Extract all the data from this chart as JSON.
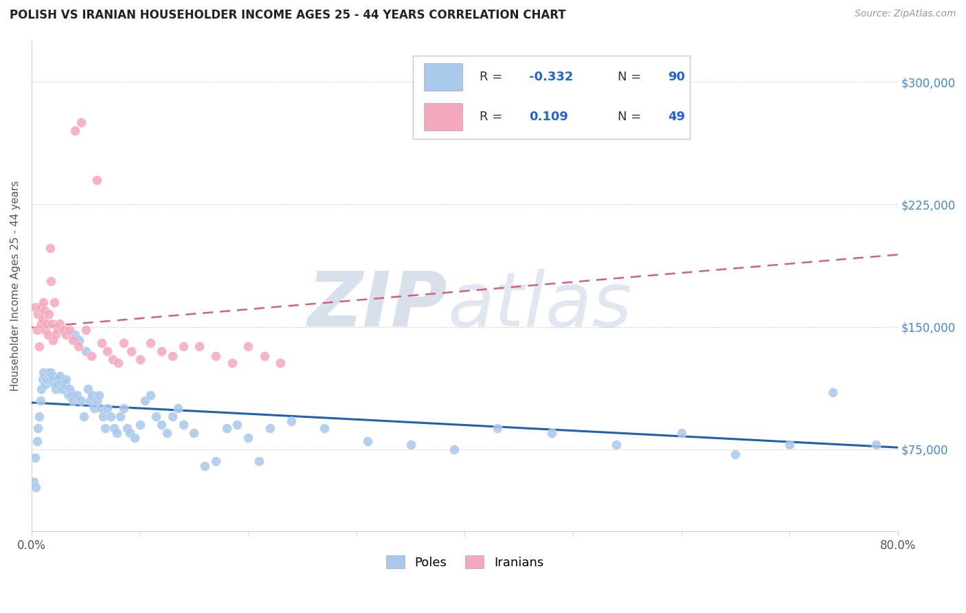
{
  "title": "POLISH VS IRANIAN HOUSEHOLDER INCOME AGES 25 - 44 YEARS CORRELATION CHART",
  "source": "Source: ZipAtlas.com",
  "ylabel": "Householder Income Ages 25 - 44 years",
  "ytick_labels": [
    "$75,000",
    "$150,000",
    "$225,000",
    "$300,000"
  ],
  "ytick_values": [
    75000,
    150000,
    225000,
    300000
  ],
  "xmin": 0.0,
  "xmax": 0.8,
  "ymin": 25000,
  "ymax": 325000,
  "poles_R": -0.332,
  "poles_N": 90,
  "iranians_R": 0.109,
  "iranians_N": 49,
  "poles_color": "#A8C8EC",
  "iranians_color": "#F4A8BC",
  "poles_line_color": "#2060B0",
  "iranians_line_color": "#D06080",
  "poles_x": [
    0.002,
    0.003,
    0.004,
    0.005,
    0.006,
    0.007,
    0.008,
    0.009,
    0.01,
    0.011,
    0.012,
    0.013,
    0.014,
    0.015,
    0.016,
    0.017,
    0.018,
    0.019,
    0.02,
    0.021,
    0.022,
    0.023,
    0.024,
    0.025,
    0.026,
    0.027,
    0.028,
    0.03,
    0.031,
    0.032,
    0.033,
    0.034,
    0.035,
    0.036,
    0.037,
    0.038,
    0.04,
    0.042,
    0.044,
    0.046,
    0.048,
    0.05,
    0.052,
    0.054,
    0.056,
    0.058,
    0.06,
    0.062,
    0.064,
    0.066,
    0.068,
    0.07,
    0.073,
    0.076,
    0.079,
    0.082,
    0.085,
    0.088,
    0.091,
    0.095,
    0.1,
    0.105,
    0.11,
    0.115,
    0.12,
    0.125,
    0.13,
    0.135,
    0.14,
    0.15,
    0.16,
    0.17,
    0.18,
    0.19,
    0.2,
    0.21,
    0.22,
    0.24,
    0.27,
    0.31,
    0.35,
    0.39,
    0.43,
    0.48,
    0.54,
    0.6,
    0.65,
    0.7,
    0.74,
    0.78
  ],
  "poles_y": [
    55000,
    70000,
    52000,
    80000,
    88000,
    95000,
    105000,
    112000,
    118000,
    122000,
    120000,
    115000,
    118000,
    122000,
    120000,
    118000,
    122000,
    120000,
    118000,
    115000,
    112000,
    115000,
    118000,
    115000,
    120000,
    112000,
    115000,
    112000,
    115000,
    118000,
    110000,
    108000,
    112000,
    110000,
    108000,
    105000,
    145000,
    108000,
    142000,
    105000,
    95000,
    135000,
    112000,
    105000,
    108000,
    100000,
    105000,
    108000,
    100000,
    95000,
    88000,
    100000,
    95000,
    88000,
    85000,
    95000,
    100000,
    88000,
    85000,
    82000,
    90000,
    105000,
    108000,
    95000,
    90000,
    85000,
    95000,
    100000,
    90000,
    85000,
    65000,
    68000,
    88000,
    90000,
    82000,
    68000,
    88000,
    92000,
    88000,
    80000,
    78000,
    75000,
    88000,
    85000,
    78000,
    85000,
    72000,
    78000,
    110000,
    78000
  ],
  "iranians_x": [
    0.003,
    0.005,
    0.006,
    0.007,
    0.008,
    0.009,
    0.01,
    0.011,
    0.012,
    0.013,
    0.014,
    0.015,
    0.016,
    0.017,
    0.018,
    0.019,
    0.02,
    0.021,
    0.022,
    0.024,
    0.026,
    0.028,
    0.03,
    0.032,
    0.035,
    0.038,
    0.04,
    0.043,
    0.046,
    0.05,
    0.055,
    0.06,
    0.065,
    0.07,
    0.075,
    0.08,
    0.085,
    0.092,
    0.1,
    0.11,
    0.12,
    0.13,
    0.14,
    0.155,
    0.17,
    0.185,
    0.2,
    0.215,
    0.23
  ],
  "iranians_y": [
    162000,
    148000,
    158000,
    138000,
    162000,
    152000,
    155000,
    165000,
    160000,
    148000,
    152000,
    145000,
    158000,
    198000,
    178000,
    152000,
    142000,
    165000,
    145000,
    148000,
    152000,
    148000,
    148000,
    145000,
    148000,
    142000,
    270000,
    138000,
    275000,
    148000,
    132000,
    240000,
    140000,
    135000,
    130000,
    128000,
    140000,
    135000,
    130000,
    140000,
    135000,
    132000,
    138000,
    138000,
    132000,
    128000,
    138000,
    132000,
    128000
  ]
}
